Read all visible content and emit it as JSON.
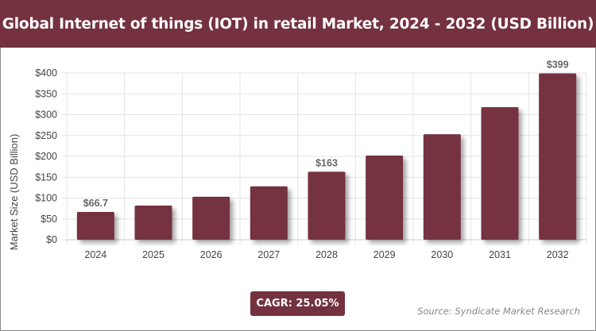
{
  "title": "Global Internet of things (IOT) in retail Market, 2024 - 2032 (USD Billion)",
  "cagr_label": "CAGR: 25.05%",
  "source": "Source: Syndicate Market Research",
  "colors": {
    "bar": "#74313f",
    "header": "#74313f"
  },
  "chart_data": {
    "type": "bar",
    "title": "Global Internet of things (IOT) in retail Market, 2024 - 2032 (USD Billion)",
    "xlabel": "",
    "ylabel": "Market Size (USD Billion)",
    "ylim": [
      0,
      400
    ],
    "yticks": [
      "$0",
      "$50",
      "$100",
      "$150",
      "$200",
      "$250",
      "$300",
      "$350",
      "$400"
    ],
    "ytick_values": [
      0,
      50,
      100,
      150,
      200,
      250,
      300,
      350,
      400
    ],
    "grid": true,
    "categories": [
      "2024",
      "2025",
      "2026",
      "2027",
      "2028",
      "2029",
      "2030",
      "2031",
      "2032"
    ],
    "values": [
      66.7,
      82,
      103,
      128,
      163,
      202,
      253,
      318,
      399
    ],
    "data_labels": {
      "0": "$66.7",
      "4": "$163",
      "8": "$399"
    }
  }
}
